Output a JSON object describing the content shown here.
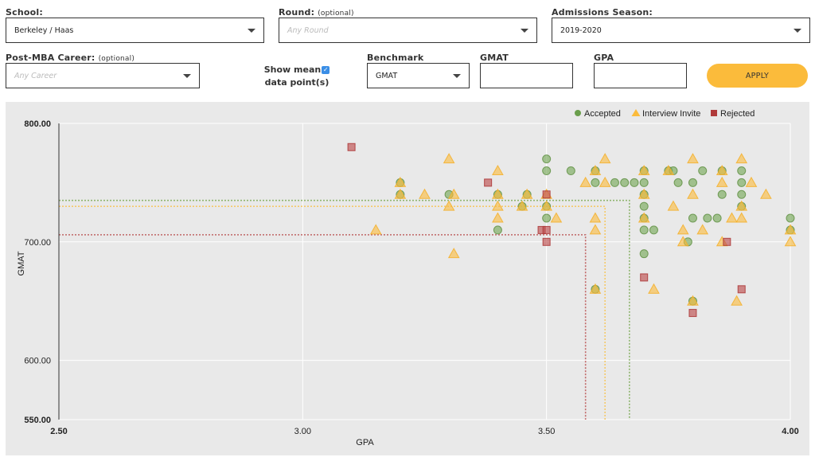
{
  "filters": {
    "school": {
      "label": "School:",
      "value": "Berkeley / Haas"
    },
    "round": {
      "label": "Round:",
      "optional": "(optional)",
      "placeholder": "Any Round"
    },
    "season": {
      "label": "Admissions Season:",
      "value": "2019-2020"
    },
    "career": {
      "label": "Post-MBA Career:",
      "optional": "(optional)",
      "placeholder": "Any Career"
    },
    "show_mean": {
      "label_line1": "Show mean",
      "label_line2": "data point(s)",
      "checked": true,
      "check_glyph": "✓"
    },
    "benchmark": {
      "label": "Benchmark",
      "value": "GMAT"
    },
    "gmat": {
      "label": "GMAT",
      "value": ""
    },
    "gpa": {
      "label": "GPA",
      "value": ""
    },
    "apply_label": "APPLY"
  },
  "chart_data": {
    "type": "scatter",
    "title": "",
    "xlabel": "GPA",
    "ylabel": "GMAT",
    "xlim": [
      2.5,
      4.0
    ],
    "ylim": [
      550,
      800
    ],
    "x_ticks": [
      "2.50",
      "3.00",
      "3.50",
      "4.00"
    ],
    "x_tick_values": [
      2.5,
      3.0,
      3.5,
      4.0
    ],
    "y_ticks": [
      "800.00",
      "700.00",
      "600.00",
      "550.00"
    ],
    "y_tick_values": [
      800,
      700,
      600,
      550
    ],
    "grid": true,
    "legend_position": "top-right",
    "legend": [
      {
        "key": "accepted",
        "label": "Accepted",
        "shape": "circle",
        "color": "#6a9e4c"
      },
      {
        "key": "interview",
        "label": "Interview Invite",
        "shape": "triangle",
        "color": "#fbbb3b"
      },
      {
        "key": "rejected",
        "label": "Rejected",
        "shape": "square",
        "color": "#b03a3a"
      }
    ],
    "means": [
      {
        "series": "accepted",
        "gpa": 3.67,
        "gmat": 735,
        "color": "#8fb56f"
      },
      {
        "series": "interview",
        "gpa": 3.62,
        "gmat": 730,
        "color": "#f5c96a"
      },
      {
        "series": "rejected",
        "gpa": 3.58,
        "gmat": 706,
        "color": "#c06565"
      }
    ],
    "series": [
      {
        "name": "accepted",
        "points": [
          [
            3.2,
            750
          ],
          [
            3.2,
            740
          ],
          [
            3.3,
            740
          ],
          [
            3.4,
            740
          ],
          [
            3.4,
            710
          ],
          [
            3.46,
            740
          ],
          [
            3.5,
            770
          ],
          [
            3.5,
            760
          ],
          [
            3.5,
            720
          ],
          [
            3.5,
            730
          ],
          [
            3.45,
            730
          ],
          [
            3.55,
            760
          ],
          [
            3.6,
            760
          ],
          [
            3.6,
            750
          ],
          [
            3.64,
            750
          ],
          [
            3.66,
            750
          ],
          [
            3.68,
            750
          ],
          [
            3.7,
            760
          ],
          [
            3.7,
            750
          ],
          [
            3.7,
            740
          ],
          [
            3.7,
            730
          ],
          [
            3.7,
            720
          ],
          [
            3.7,
            710
          ],
          [
            3.7,
            690
          ],
          [
            3.72,
            710
          ],
          [
            3.75,
            760
          ],
          [
            3.76,
            760
          ],
          [
            3.77,
            750
          ],
          [
            3.79,
            700
          ],
          [
            3.8,
            750
          ],
          [
            3.8,
            720
          ],
          [
            3.8,
            650
          ],
          [
            3.82,
            760
          ],
          [
            3.83,
            720
          ],
          [
            3.85,
            720
          ],
          [
            3.86,
            760
          ],
          [
            3.86,
            740
          ],
          [
            3.9,
            760
          ],
          [
            3.9,
            750
          ],
          [
            3.9,
            740
          ],
          [
            3.9,
            730
          ],
          [
            4.0,
            720
          ],
          [
            4.0,
            710
          ],
          [
            3.6,
            660
          ]
        ]
      },
      {
        "name": "interview",
        "points": [
          [
            3.15,
            710
          ],
          [
            3.2,
            750
          ],
          [
            3.2,
            740
          ],
          [
            3.25,
            740
          ],
          [
            3.3,
            770
          ],
          [
            3.3,
            730
          ],
          [
            3.31,
            690
          ],
          [
            3.31,
            740
          ],
          [
            3.4,
            760
          ],
          [
            3.4,
            740
          ],
          [
            3.4,
            730
          ],
          [
            3.4,
            720
          ],
          [
            3.45,
            730
          ],
          [
            3.46,
            740
          ],
          [
            3.5,
            740
          ],
          [
            3.5,
            730
          ],
          [
            3.52,
            720
          ],
          [
            3.58,
            750
          ],
          [
            3.6,
            760
          ],
          [
            3.6,
            720
          ],
          [
            3.6,
            710
          ],
          [
            3.62,
            770
          ],
          [
            3.62,
            750
          ],
          [
            3.6,
            660
          ],
          [
            3.7,
            760
          ],
          [
            3.7,
            740
          ],
          [
            3.7,
            720
          ],
          [
            3.72,
            660
          ],
          [
            3.75,
            760
          ],
          [
            3.76,
            730
          ],
          [
            3.78,
            710
          ],
          [
            3.8,
            770
          ],
          [
            3.8,
            740
          ],
          [
            3.82,
            710
          ],
          [
            3.8,
            650
          ],
          [
            3.86,
            760
          ],
          [
            3.86,
            750
          ],
          [
            3.86,
            700
          ],
          [
            3.88,
            720
          ],
          [
            3.9,
            770
          ],
          [
            3.9,
            730
          ],
          [
            3.9,
            720
          ],
          [
            3.92,
            750
          ],
          [
            3.89,
            650
          ],
          [
            3.95,
            740
          ],
          [
            4.0,
            710
          ],
          [
            4.0,
            700
          ],
          [
            3.78,
            700
          ]
        ]
      },
      {
        "name": "rejected",
        "points": [
          [
            3.1,
            780
          ],
          [
            3.38,
            750
          ],
          [
            3.5,
            740
          ],
          [
            3.49,
            710
          ],
          [
            3.5,
            710
          ],
          [
            3.5,
            700
          ],
          [
            3.7,
            670
          ],
          [
            3.8,
            640
          ],
          [
            3.87,
            700
          ],
          [
            3.9,
            660
          ]
        ]
      }
    ]
  }
}
